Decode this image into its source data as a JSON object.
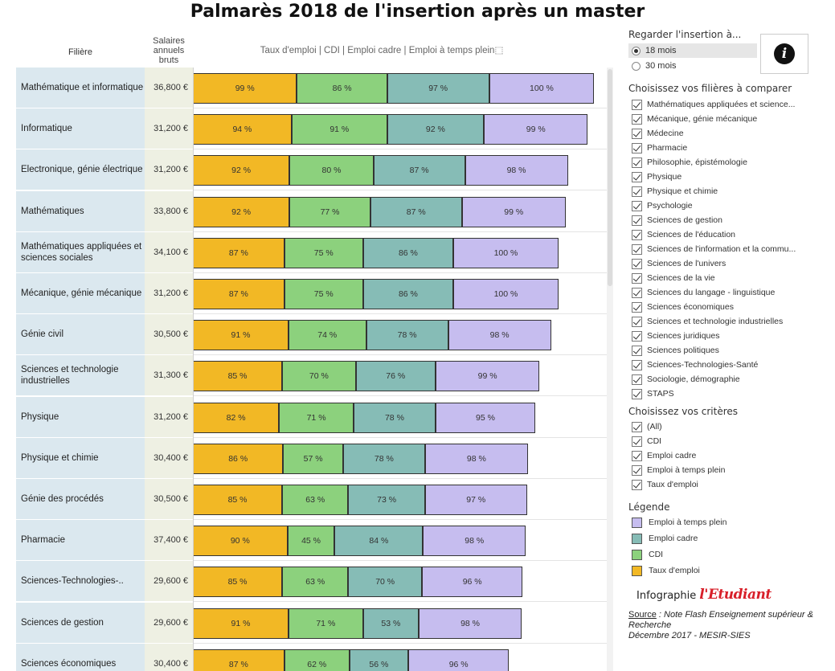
{
  "title": "Palmarès 2018 de l'insertion après un master",
  "columns": {
    "filiere": "Filière",
    "salaire": [
      "Salaires",
      "annuels",
      "bruts"
    ],
    "taux": "Taux d'emploi | CDI | Emploi cadre | Emploi à temps plein⬚"
  },
  "colors": {
    "taux_emploi": "#f2b825",
    "cdi": "#8cd17d",
    "emploi_cadre": "#86bcb6",
    "temps_plein": "#c6bdef"
  },
  "chart_data": {
    "type": "bar",
    "stacked": true,
    "orientation": "horizontal",
    "categories": [
      "Mathématique et informatique",
      "Informatique",
      "Electronique, génie électrique",
      "Mathématiques",
      "Mathématiques appliquées et sciences sociales",
      "Mécanique, génie mécanique",
      "Génie civil",
      "Sciences et technologie industrielles",
      "Physique",
      "Physique et chimie",
      "Génie des procédés",
      "Pharmacie",
      "Sciences-Technologies-..",
      "Sciences de gestion",
      "Sciences économiques"
    ],
    "salaires": [
      "36,800 €",
      "31,200 €",
      "31,200 €",
      "33,800 €",
      "34,100 €",
      "31,200 €",
      "30,500 €",
      "31,300 €",
      "31,200 €",
      "30,400 €",
      "30,500 €",
      "37,400 €",
      "29,600 €",
      "29,600 €",
      "30,400 €"
    ],
    "series": [
      {
        "name": "Taux d'emploi",
        "color": "#f2b825",
        "values": [
          99,
          94,
          92,
          92,
          87,
          87,
          91,
          85,
          82,
          86,
          85,
          90,
          85,
          91,
          87
        ]
      },
      {
        "name": "CDI",
        "color": "#8cd17d",
        "values": [
          86,
          91,
          80,
          77,
          75,
          75,
          74,
          70,
          71,
          57,
          63,
          45,
          63,
          71,
          62
        ]
      },
      {
        "name": "Emploi cadre",
        "color": "#86bcb6",
        "values": [
          97,
          92,
          87,
          87,
          86,
          86,
          78,
          76,
          78,
          78,
          73,
          84,
          70,
          53,
          56
        ]
      },
      {
        "name": "Emploi à temps plein",
        "color": "#c6bdef",
        "values": [
          100,
          99,
          98,
          99,
          100,
          100,
          98,
          99,
          95,
          98,
          97,
          98,
          96,
          98,
          96
        ]
      }
    ],
    "value_suffix": " %"
  },
  "panel": {
    "insertion_title": "Regarder l'insertion à...",
    "insertion_options": [
      {
        "label": "18 mois",
        "selected": true
      },
      {
        "label": "30 mois",
        "selected": false
      }
    ],
    "filieres_title": "Choisissez vos filières à comparer",
    "filieres": [
      "Mathématiques appliquées et science...",
      "Mécanique, génie mécanique",
      "Médecine",
      "Pharmacie",
      "Philosophie, épistémologie",
      "Physique",
      "Physique et chimie",
      "Psychologie",
      "Sciences de gestion",
      "Sciences de l'éducation",
      "Sciences de l'information et la commu...",
      "Sciences de l'univers",
      "Sciences de la vie",
      "Sciences du langage - linguistique",
      "Sciences économiques",
      "Sciences et technologie industrielles",
      "Sciences juridiques",
      "Sciences politiques",
      "Sciences-Technologies-Santé",
      "Sociologie, démographie",
      "STAPS"
    ],
    "criteres_title": "Choisissez vos critères",
    "criteres": [
      "(All)",
      "CDI",
      "Emploi cadre",
      "Emploi à temps plein",
      "Taux d'emploi"
    ],
    "legende_title": "Légende",
    "legende": [
      {
        "label": "Emploi à temps plein",
        "color": "#c6bdef"
      },
      {
        "label": "Emploi cadre",
        "color": "#86bcb6"
      },
      {
        "label": "CDI",
        "color": "#8cd17d"
      },
      {
        "label": "Taux d'emploi",
        "color": "#f2b825"
      }
    ],
    "brand_prefix": "Infographie",
    "brand_name": "l'Etudiant",
    "source_label": "Source",
    "source_text": " : Note Flash Enseignement supérieur & Recherche",
    "source_date": "Décembre 2017 - MESIR-SIES"
  }
}
